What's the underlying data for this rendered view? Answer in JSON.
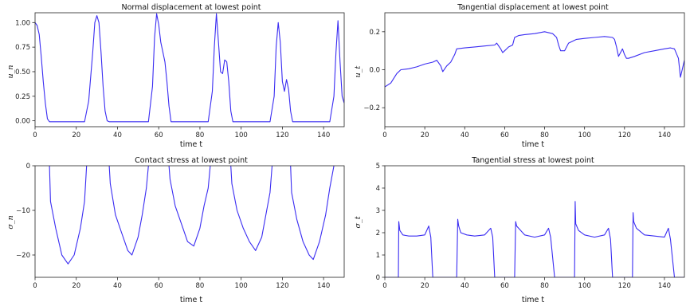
{
  "figure": {
    "accent_color": "#3a2cf2"
  },
  "chart_data": [
    {
      "type": "line",
      "title": "Normal displacement at lowest point",
      "xlabel": "time t",
      "ylabel": "u_n",
      "xlim": [
        0,
        150
      ],
      "ylim": [
        -0.06,
        1.1
      ],
      "xticks": [
        0,
        20,
        40,
        60,
        80,
        100,
        120,
        140
      ],
      "yticks": [
        0.0,
        0.25,
        0.5,
        0.75,
        1.0
      ],
      "xtick_labels": [
        "0",
        "20",
        "40",
        "60",
        "80",
        "100",
        "120",
        "140"
      ],
      "ytick_labels": [
        "0.00",
        "0.25",
        "0.50",
        "0.75",
        "1.00"
      ],
      "grid": false,
      "series": [
        {
          "color": "#3a2cf2",
          "x": [
            0,
            1,
            2,
            3,
            4,
            5,
            6,
            7,
            24,
            26,
            28,
            29,
            30,
            31,
            32,
            33,
            34,
            35,
            36,
            55,
            57,
            58,
            59,
            60,
            61,
            62,
            63,
            64,
            65,
            66,
            84,
            86,
            87,
            88,
            89,
            90,
            91,
            92,
            93,
            94,
            95,
            96,
            114,
            116,
            117,
            118,
            119,
            120,
            121,
            122,
            123,
            124,
            125,
            143,
            145,
            146,
            147,
            148,
            149,
            150
          ],
          "y": [
            1.0,
            0.97,
            0.88,
            0.65,
            0.4,
            0.18,
            0.02,
            -0.01,
            -0.01,
            0.2,
            0.7,
            1.0,
            1.07,
            1.0,
            0.7,
            0.35,
            0.1,
            0.0,
            -0.01,
            -0.01,
            0.35,
            0.85,
            1.09,
            0.98,
            0.8,
            0.7,
            0.6,
            0.4,
            0.15,
            -0.01,
            -0.01,
            0.3,
            0.75,
            1.09,
            0.8,
            0.5,
            0.48,
            0.62,
            0.6,
            0.4,
            0.1,
            -0.01,
            -0.01,
            0.25,
            0.75,
            1.0,
            0.8,
            0.4,
            0.3,
            0.42,
            0.32,
            0.1,
            -0.01,
            -0.01,
            0.25,
            0.7,
            1.02,
            0.6,
            0.25,
            0.18
          ]
        }
      ]
    },
    {
      "type": "line",
      "title": "Tangential displacement at lowest point",
      "xlabel": "time t",
      "ylabel": "u_t",
      "xlim": [
        0,
        150
      ],
      "ylim": [
        -0.3,
        0.3
      ],
      "xticks": [
        0,
        20,
        40,
        60,
        80,
        100,
        120,
        140
      ],
      "yticks": [
        -0.2,
        0.0,
        0.2
      ],
      "xtick_labels": [
        "0",
        "20",
        "40",
        "60",
        "80",
        "100",
        "120",
        "140"
      ],
      "ytick_labels": [
        "−0.2",
        "0.0",
        "0.2"
      ],
      "grid": false,
      "series": [
        {
          "color": "#3a2cf2",
          "x": [
            0,
            3,
            6,
            8,
            12,
            16,
            20,
            24,
            26,
            28,
            29,
            31,
            33,
            35,
            36,
            40,
            45,
            50,
            55,
            56,
            58,
            59,
            60,
            62,
            64,
            65,
            67,
            70,
            75,
            80,
            84,
            86,
            87,
            88,
            90,
            92,
            94,
            96,
            100,
            105,
            110,
            114,
            115,
            116,
            117,
            118,
            119,
            120,
            121,
            122,
            125,
            130,
            135,
            140,
            143,
            145,
            147,
            148,
            150
          ],
          "y": [
            -0.09,
            -0.07,
            -0.02,
            0.0,
            0.005,
            0.015,
            0.03,
            0.04,
            0.05,
            0.02,
            -0.01,
            0.02,
            0.04,
            0.08,
            0.11,
            0.115,
            0.12,
            0.125,
            0.13,
            0.14,
            0.11,
            0.09,
            0.1,
            0.12,
            0.13,
            0.17,
            0.18,
            0.185,
            0.19,
            0.2,
            0.19,
            0.17,
            0.13,
            0.1,
            0.1,
            0.14,
            0.15,
            0.16,
            0.165,
            0.17,
            0.175,
            0.17,
            0.16,
            0.12,
            0.07,
            0.09,
            0.11,
            0.08,
            0.06,
            0.06,
            0.07,
            0.09,
            0.1,
            0.11,
            0.115,
            0.11,
            0.06,
            -0.04,
            0.05
          ]
        }
      ]
    },
    {
      "type": "line",
      "title": "Contact stress at lowest point",
      "xlabel": "time t",
      "ylabel": "σ_n",
      "xlim": [
        0,
        150
      ],
      "ylim": [
        -25,
        0
      ],
      "xticks": [
        0,
        20,
        40,
        60,
        80,
        100,
        120,
        140
      ],
      "yticks": [
        0,
        -10,
        -20
      ],
      "xtick_labels": [
        "0",
        "20",
        "40",
        "60",
        "80",
        "100",
        "120",
        "140"
      ],
      "ytick_labels": [
        "0",
        "−10",
        "−20"
      ],
      "grid": false,
      "series": [
        {
          "color": "#3a2cf2",
          "x": [
            7,
            7.5,
            10,
            13,
            16,
            19,
            22,
            24,
            25
          ],
          "y": [
            0,
            -8,
            -14,
            -20,
            -22,
            -20,
            -14,
            -8,
            0
          ]
        },
        {
          "color": "#3a2cf2",
          "x": [
            36,
            36.5,
            39,
            42,
            45,
            47,
            50,
            52,
            54,
            55
          ],
          "y": [
            0,
            -4,
            -11,
            -15,
            -19,
            -20,
            -16,
            -11,
            -5,
            0
          ]
        },
        {
          "color": "#3a2cf2",
          "x": [
            65,
            65.5,
            68,
            71,
            74,
            77,
            80,
            82,
            84,
            85
          ],
          "y": [
            0,
            -3,
            -9,
            -13,
            -17,
            -18,
            -14,
            -9,
            -5,
            0
          ]
        },
        {
          "color": "#3a2cf2",
          "x": [
            95,
            95.5,
            98,
            101,
            104,
            107,
            110,
            112,
            114,
            115
          ],
          "y": [
            0,
            -4,
            -10,
            -14,
            -17,
            -19,
            -16,
            -11,
            -6,
            0
          ]
        },
        {
          "color": "#3a2cf2",
          "x": [
            124,
            124.5,
            127,
            130,
            133,
            135,
            138,
            141,
            143,
            145
          ],
          "y": [
            0,
            -6,
            -12,
            -17,
            -20,
            -21,
            -17,
            -11,
            -5,
            0
          ]
        }
      ]
    },
    {
      "type": "line",
      "title": "Tangential stress at lowest point",
      "xlabel": "time t",
      "ylabel": "σ_t",
      "xlim": [
        0,
        150
      ],
      "ylim": [
        0,
        5
      ],
      "xticks": [
        0,
        20,
        40,
        60,
        80,
        100,
        120,
        140
      ],
      "yticks": [
        0,
        1,
        2,
        3,
        4,
        5
      ],
      "xtick_labels": [
        "0",
        "20",
        "40",
        "60",
        "80",
        "100",
        "120",
        "140"
      ],
      "ytick_labels": [
        "0",
        "1",
        "2",
        "3",
        "4",
        "5"
      ],
      "grid": false,
      "series": [
        {
          "color": "#3a2cf2",
          "x": [
            0,
            6.8,
            7,
            7.5,
            9,
            12,
            16,
            20,
            22,
            23,
            24,
            36,
            36.5,
            37,
            38,
            41,
            45,
            50,
            53,
            54,
            55,
            65,
            65.5,
            66,
            67,
            70,
            75,
            80,
            82,
            83,
            85,
            95,
            95.3,
            95.6,
            97,
            100,
            105,
            110,
            112,
            113,
            114,
            124,
            124.3,
            124.6,
            126,
            130,
            135,
            140,
            142,
            143,
            145,
            150
          ],
          "y": [
            0,
            0,
            2.5,
            2.1,
            1.9,
            1.85,
            1.85,
            1.9,
            2.3,
            1.8,
            0,
            0,
            2.6,
            2.3,
            2.0,
            1.9,
            1.85,
            1.9,
            2.2,
            1.8,
            0,
            0,
            2.5,
            2.3,
            2.2,
            1.9,
            1.8,
            1.9,
            2.2,
            1.8,
            0,
            0,
            3.4,
            2.4,
            2.1,
            1.9,
            1.8,
            1.9,
            2.2,
            1.7,
            0,
            0,
            2.9,
            2.5,
            2.2,
            1.9,
            1.85,
            1.8,
            2.2,
            1.7,
            0,
            0
          ]
        }
      ]
    }
  ]
}
